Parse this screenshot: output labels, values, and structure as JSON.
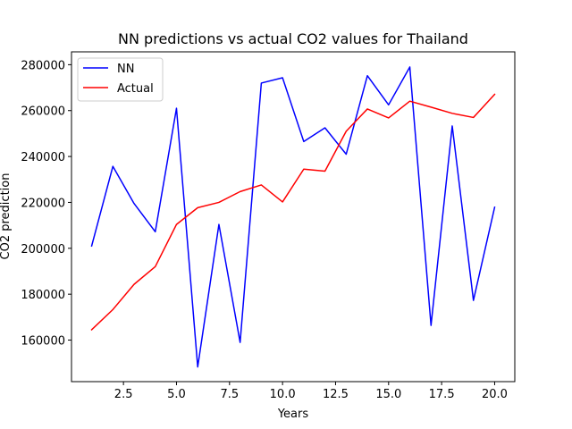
{
  "chart_data": {
    "type": "line",
    "title": "NN predictions vs actual CO2 values for Thailand",
    "xlabel": "Years",
    "ylabel": "CO2 prediction",
    "xlim": [
      0.05,
      20.95
    ],
    "ylim": [
      141900,
      285600
    ],
    "x_ticks": [
      2.5,
      5.0,
      7.5,
      10.0,
      12.5,
      15.0,
      17.5,
      20.0
    ],
    "x_tick_labels": [
      "2.5",
      "5.0",
      "7.5",
      "10.0",
      "12.5",
      "15.0",
      "17.5",
      "20.0"
    ],
    "y_ticks": [
      160000,
      180000,
      200000,
      220000,
      240000,
      260000,
      280000
    ],
    "y_tick_labels": [
      "160000",
      "180000",
      "200000",
      "220000",
      "240000",
      "260000",
      "280000"
    ],
    "grid": false,
    "legend_position": "top-left",
    "x": [
      1,
      2,
      3,
      4,
      5,
      6,
      7,
      8,
      9,
      10,
      11,
      12,
      13,
      14,
      15,
      16,
      17,
      18,
      19,
      20
    ],
    "series": [
      {
        "name": "NN",
        "color": "#0000ff",
        "values": [
          201000,
          235700,
          219500,
          207200,
          261000,
          148300,
          210400,
          159000,
          272000,
          274300,
          246500,
          252500,
          241000,
          275200,
          262500,
          279000,
          166400,
          253300,
          177300,
          217900
        ]
      },
      {
        "name": "Actual",
        "color": "#ff0000",
        "values": [
          164500,
          173300,
          184300,
          192000,
          210400,
          217700,
          220000,
          224700,
          227600,
          220200,
          234500,
          233600,
          251000,
          260700,
          256800,
          264100,
          261500,
          258800,
          257000,
          267100
        ]
      }
    ]
  }
}
